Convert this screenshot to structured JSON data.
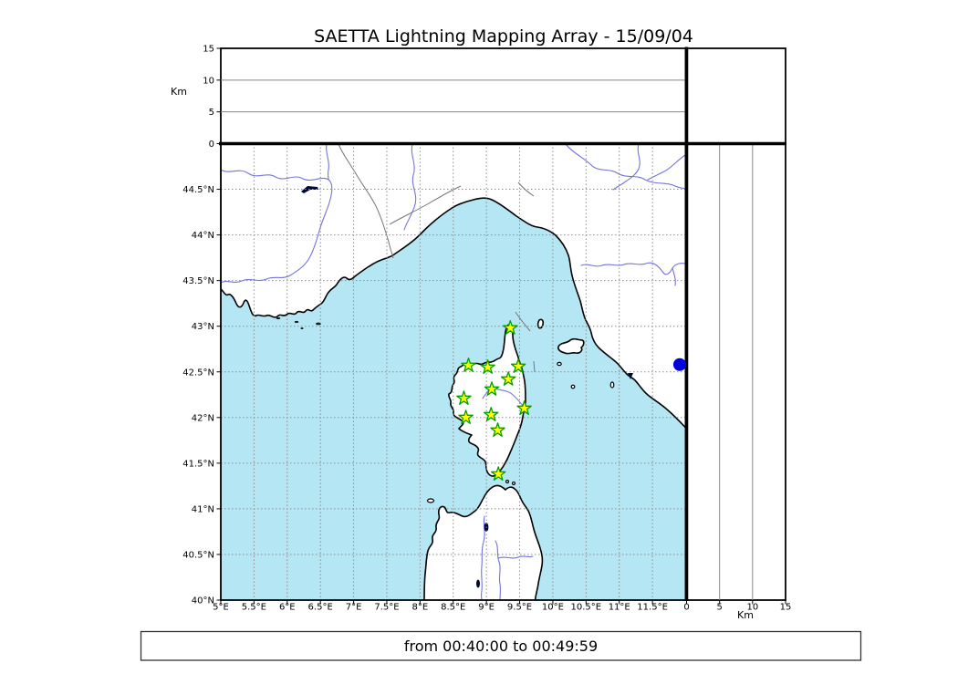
{
  "title": "SAETTA Lightning Mapping Array - 15/09/04",
  "caption": "from 00:40:00 to 00:49:59",
  "colors": {
    "sea": "#b5e6f4",
    "land": "#ffffff",
    "coastline": "#000000",
    "grid": "#8c8c8c",
    "river": "#7373dc",
    "lake": "#000838",
    "political_border": "#777777",
    "station_fill": "#ffff00",
    "station_stroke": "#00a000",
    "event_dot": "#0000dd"
  },
  "map_panel": {
    "lon_min": 5,
    "lon_max": 12,
    "lat_min": 40,
    "lat_max": 45,
    "lon_tick_labels": [
      "5°E",
      "5.5°E",
      "6°E",
      "6.5°E",
      "7°E",
      "7.5°E",
      "8°E",
      "8.5°E",
      "9°E",
      "9.5°E",
      "10°E",
      "10.5°E",
      "11°E",
      "11.5°E"
    ],
    "lat_tick_labels": [
      "40°N",
      "40.5°N",
      "41°N",
      "41.5°N",
      "42°N",
      "42.5°N",
      "43°N",
      "43.5°N",
      "44°N",
      "44.5°N"
    ]
  },
  "altitude_panel_top": {
    "axis_label": "Km",
    "tick_labels": [
      "0",
      "5",
      "10",
      "15"
    ],
    "km_max": 15
  },
  "altitude_panel_right": {
    "axis_label": "Km",
    "tick_labels": [
      "0",
      "5",
      "10",
      "15"
    ],
    "km_max": 15
  },
  "stations": [
    {
      "lon": 9.36,
      "lat": 42.98
    },
    {
      "lon": 8.73,
      "lat": 42.57
    },
    {
      "lon": 9.02,
      "lat": 42.55
    },
    {
      "lon": 9.48,
      "lat": 42.56
    },
    {
      "lon": 9.33,
      "lat": 42.42
    },
    {
      "lon": 9.08,
      "lat": 42.31
    },
    {
      "lon": 8.66,
      "lat": 42.21
    },
    {
      "lon": 9.57,
      "lat": 42.1
    },
    {
      "lon": 8.69,
      "lat": 42.0
    },
    {
      "lon": 9.07,
      "lat": 42.03
    },
    {
      "lon": 9.17,
      "lat": 41.86
    },
    {
      "lon": 9.18,
      "lat": 41.38
    }
  ],
  "event_dot": {
    "lon": 11.91,
    "lat": 42.58
  }
}
